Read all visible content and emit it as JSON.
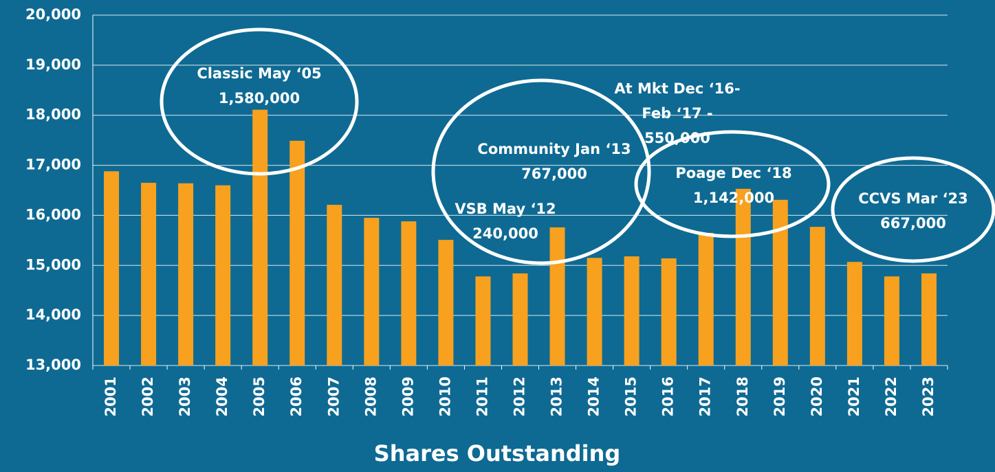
{
  "chart_data": {
    "type": "bar",
    "title": "Shares Outstanding",
    "categories": [
      "2001",
      "2002",
      "2003",
      "2004",
      "2005",
      "2006",
      "2007",
      "2008",
      "2009",
      "2010",
      "2011",
      "2012",
      "2013",
      "2014",
      "2015",
      "2016",
      "2017",
      "2018",
      "2019",
      "2020",
      "2021",
      "2022",
      "2023"
    ],
    "values": [
      16880,
      16650,
      16640,
      16600,
      18110,
      17490,
      16210,
      15950,
      15880,
      15510,
      14780,
      14840,
      15760,
      15150,
      15180,
      15140,
      15650,
      16530,
      16310,
      15770,
      15070,
      14780,
      14840
    ],
    "color": "#f7a11e",
    "ylim": [
      13000,
      20000
    ],
    "yticks": [
      {
        "value": 13000,
        "label": "13,000"
      },
      {
        "value": 14000,
        "label": "14,000"
      },
      {
        "value": 15000,
        "label": "15,000"
      },
      {
        "value": 16000,
        "label": "16,000"
      },
      {
        "value": 17000,
        "label": "17,000"
      },
      {
        "value": 18000,
        "label": "18,000"
      },
      {
        "value": 19000,
        "label": "19,000"
      },
      {
        "value": 20000,
        "label": "20,000"
      }
    ],
    "grid": true,
    "annotations": [
      [
        "Classic May ‘05",
        "1,580,000"
      ],
      [
        "At Mkt Dec ‘16-",
        "Feb ‘17 -",
        "550,000"
      ],
      [
        "Community Jan ‘13",
        "767,000"
      ],
      [
        "VSB May ‘12",
        "240,000"
      ],
      [
        "Poage Dec ‘18",
        "1,142,000"
      ],
      [
        "CCVS Mar ‘23",
        "667,000"
      ]
    ]
  }
}
